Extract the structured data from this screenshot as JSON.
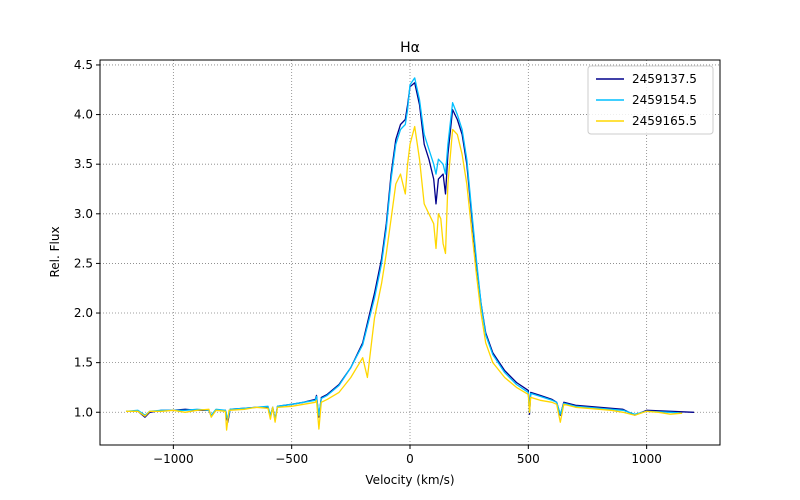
{
  "chart_data": {
    "type": "line",
    "title": "Hα",
    "xlabel": "Velocity (km/s)",
    "ylabel": "Rel. Flux",
    "xlim": [
      -1310,
      1310
    ],
    "ylim": [
      0.67,
      4.55
    ],
    "xticks": [
      -1000,
      -500,
      0,
      500,
      1000
    ],
    "xtick_labels": [
      "−1000",
      "−500",
      "0",
      "500",
      "1000"
    ],
    "yticks": [
      1.0,
      1.5,
      2.0,
      2.5,
      3.0,
      3.5,
      4.0,
      4.5
    ],
    "ytick_labels": [
      "1.0",
      "1.5",
      "2.0",
      "2.5",
      "3.0",
      "3.5",
      "4.0",
      "4.5"
    ],
    "grid": true,
    "legend_position": "top-right",
    "series": [
      {
        "name": "2459137.5",
        "color": "#00008b",
        "points": [
          [
            -1200,
            1.01
          ],
          [
            -1150,
            1.01
          ],
          [
            -1120,
            0.95
          ],
          [
            -1100,
            1.0
          ],
          [
            -1050,
            1.02
          ],
          [
            -1000,
            1.02
          ],
          [
            -950,
            1.03
          ],
          [
            -900,
            1.02
          ],
          [
            -850,
            1.02
          ],
          [
            -840,
            0.96
          ],
          [
            -820,
            1.02
          ],
          [
            -780,
            1.02
          ],
          [
            -770,
            0.9
          ],
          [
            -760,
            1.03
          ],
          [
            -700,
            1.04
          ],
          [
            -650,
            1.05
          ],
          [
            -600,
            1.05
          ],
          [
            -590,
            0.95
          ],
          [
            -580,
            1.05
          ],
          [
            -570,
            0.92
          ],
          [
            -560,
            1.06
          ],
          [
            -500,
            1.08
          ],
          [
            -450,
            1.1
          ],
          [
            -400,
            1.13
          ],
          [
            -395,
            1.17
          ],
          [
            -385,
            0.95
          ],
          [
            -375,
            1.15
          ],
          [
            -350,
            1.18
          ],
          [
            -300,
            1.28
          ],
          [
            -250,
            1.45
          ],
          [
            -200,
            1.7
          ],
          [
            -150,
            2.2
          ],
          [
            -120,
            2.55
          ],
          [
            -100,
            2.9
          ],
          [
            -80,
            3.4
          ],
          [
            -60,
            3.75
          ],
          [
            -40,
            3.9
          ],
          [
            -20,
            3.95
          ],
          [
            -10,
            4.1
          ],
          [
            0,
            4.28
          ],
          [
            20,
            4.32
          ],
          [
            40,
            4.1
          ],
          [
            60,
            3.7
          ],
          [
            80,
            3.55
          ],
          [
            100,
            3.35
          ],
          [
            110,
            3.1
          ],
          [
            120,
            3.35
          ],
          [
            140,
            3.4
          ],
          [
            150,
            3.2
          ],
          [
            160,
            3.6
          ],
          [
            180,
            4.05
          ],
          [
            200,
            3.95
          ],
          [
            220,
            3.8
          ],
          [
            240,
            3.5
          ],
          [
            260,
            3.0
          ],
          [
            280,
            2.5
          ],
          [
            300,
            2.1
          ],
          [
            320,
            1.8
          ],
          [
            350,
            1.6
          ],
          [
            400,
            1.42
          ],
          [
            450,
            1.3
          ],
          [
            500,
            1.22
          ],
          [
            505,
            0.98
          ],
          [
            510,
            1.2
          ],
          [
            550,
            1.17
          ],
          [
            600,
            1.13
          ],
          [
            620,
            1.1
          ],
          [
            635,
            0.97
          ],
          [
            650,
            1.1
          ],
          [
            700,
            1.07
          ],
          [
            800,
            1.05
          ],
          [
            850,
            1.04
          ],
          [
            900,
            1.03
          ],
          [
            950,
            0.97
          ],
          [
            1000,
            1.02
          ],
          [
            1100,
            1.01
          ],
          [
            1200,
            1.0
          ]
        ]
      },
      {
        "name": "2459154.5",
        "color": "#00bfff",
        "points": [
          [
            -1200,
            1.01
          ],
          [
            -1150,
            1.02
          ],
          [
            -1120,
            0.97
          ],
          [
            -1100,
            1.01
          ],
          [
            -1050,
            1.02
          ],
          [
            -1000,
            1.02
          ],
          [
            -950,
            1.02
          ],
          [
            -900,
            1.03
          ],
          [
            -850,
            1.02
          ],
          [
            -840,
            0.97
          ],
          [
            -820,
            1.03
          ],
          [
            -780,
            1.02
          ],
          [
            -770,
            0.93
          ],
          [
            -760,
            1.03
          ],
          [
            -700,
            1.04
          ],
          [
            -650,
            1.05
          ],
          [
            -600,
            1.06
          ],
          [
            -590,
            0.97
          ],
          [
            -580,
            1.05
          ],
          [
            -570,
            0.93
          ],
          [
            -560,
            1.06
          ],
          [
            -500,
            1.08
          ],
          [
            -450,
            1.1
          ],
          [
            -400,
            1.12
          ],
          [
            -395,
            1.16
          ],
          [
            -385,
            0.97
          ],
          [
            -375,
            1.14
          ],
          [
            -350,
            1.17
          ],
          [
            -300,
            1.27
          ],
          [
            -250,
            1.45
          ],
          [
            -200,
            1.68
          ],
          [
            -150,
            2.15
          ],
          [
            -120,
            2.5
          ],
          [
            -100,
            2.85
          ],
          [
            -80,
            3.35
          ],
          [
            -60,
            3.7
          ],
          [
            -40,
            3.85
          ],
          [
            -20,
            3.9
          ],
          [
            -10,
            4.05
          ],
          [
            0,
            4.3
          ],
          [
            20,
            4.37
          ],
          [
            40,
            4.15
          ],
          [
            60,
            3.8
          ],
          [
            80,
            3.65
          ],
          [
            100,
            3.5
          ],
          [
            110,
            3.4
          ],
          [
            120,
            3.55
          ],
          [
            140,
            3.5
          ],
          [
            150,
            3.4
          ],
          [
            160,
            3.7
          ],
          [
            180,
            4.12
          ],
          [
            200,
            4.0
          ],
          [
            220,
            3.85
          ],
          [
            240,
            3.55
          ],
          [
            260,
            3.05
          ],
          [
            280,
            2.55
          ],
          [
            300,
            2.1
          ],
          [
            320,
            1.78
          ],
          [
            350,
            1.58
          ],
          [
            400,
            1.4
          ],
          [
            450,
            1.28
          ],
          [
            500,
            1.2
          ],
          [
            505,
            1.0
          ],
          [
            510,
            1.19
          ],
          [
            550,
            1.16
          ],
          [
            600,
            1.12
          ],
          [
            620,
            1.1
          ],
          [
            635,
            0.98
          ],
          [
            650,
            1.09
          ],
          [
            700,
            1.06
          ],
          [
            800,
            1.04
          ],
          [
            850,
            1.03
          ],
          [
            900,
            1.02
          ],
          [
            950,
            0.98
          ],
          [
            1000,
            1.01
          ],
          [
            1100,
            1.0
          ],
          [
            1150,
            0.99
          ]
        ]
      },
      {
        "name": "2459165.5",
        "color": "#ffd700",
        "points": [
          [
            -1200,
            1.01
          ],
          [
            -1150,
            1.01
          ],
          [
            -1120,
            0.96
          ],
          [
            -1100,
            1.01
          ],
          [
            -1050,
            1.01
          ],
          [
            -1000,
            1.02
          ],
          [
            -950,
            1.0
          ],
          [
            -900,
            1.02
          ],
          [
            -850,
            1.03
          ],
          [
            -840,
            0.95
          ],
          [
            -820,
            1.02
          ],
          [
            -780,
            1.01
          ],
          [
            -775,
            0.82
          ],
          [
            -765,
            1.02
          ],
          [
            -700,
            1.03
          ],
          [
            -650,
            1.05
          ],
          [
            -600,
            1.04
          ],
          [
            -590,
            0.93
          ],
          [
            -580,
            1.05
          ],
          [
            -570,
            0.9
          ],
          [
            -560,
            1.05
          ],
          [
            -500,
            1.06
          ],
          [
            -450,
            1.08
          ],
          [
            -400,
            1.1
          ],
          [
            -395,
            1.12
          ],
          [
            -385,
            0.83
          ],
          [
            -375,
            1.1
          ],
          [
            -350,
            1.13
          ],
          [
            -300,
            1.2
          ],
          [
            -250,
            1.35
          ],
          [
            -200,
            1.55
          ],
          [
            -180,
            1.35
          ],
          [
            -160,
            1.75
          ],
          [
            -150,
            1.95
          ],
          [
            -120,
            2.3
          ],
          [
            -100,
            2.6
          ],
          [
            -80,
            2.95
          ],
          [
            -60,
            3.3
          ],
          [
            -40,
            3.4
          ],
          [
            -20,
            3.2
          ],
          [
            -10,
            3.5
          ],
          [
            0,
            3.7
          ],
          [
            20,
            3.88
          ],
          [
            40,
            3.55
          ],
          [
            60,
            3.1
          ],
          [
            80,
            3.0
          ],
          [
            100,
            2.9
          ],
          [
            110,
            2.65
          ],
          [
            120,
            3.0
          ],
          [
            130,
            2.95
          ],
          [
            140,
            2.7
          ],
          [
            150,
            2.6
          ],
          [
            160,
            3.3
          ],
          [
            180,
            3.85
          ],
          [
            200,
            3.8
          ],
          [
            220,
            3.6
          ],
          [
            240,
            3.3
          ],
          [
            260,
            2.85
          ],
          [
            280,
            2.4
          ],
          [
            300,
            2.0
          ],
          [
            320,
            1.7
          ],
          [
            350,
            1.5
          ],
          [
            400,
            1.35
          ],
          [
            450,
            1.25
          ],
          [
            500,
            1.18
          ],
          [
            505,
            1.0
          ],
          [
            510,
            1.15
          ],
          [
            550,
            1.12
          ],
          [
            600,
            1.1
          ],
          [
            620,
            1.08
          ],
          [
            635,
            0.9
          ],
          [
            650,
            1.08
          ],
          [
            700,
            1.05
          ],
          [
            800,
            1.03
          ],
          [
            850,
            1.02
          ],
          [
            900,
            1.0
          ],
          [
            950,
            0.97
          ],
          [
            1000,
            1.01
          ],
          [
            1050,
            1.0
          ],
          [
            1100,
            0.98
          ],
          [
            1150,
            0.99
          ]
        ]
      }
    ]
  }
}
